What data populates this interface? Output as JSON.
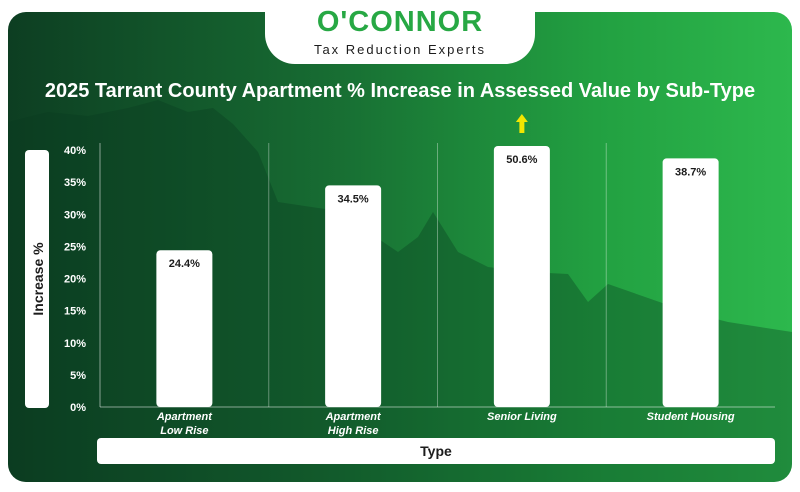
{
  "logo": {
    "brand": "O'CONNOR",
    "tagline": "Tax Reduction Experts"
  },
  "colors": {
    "brand_green": "#27a844",
    "background_dark": "#0d3e22",
    "background_light": "#2db84d",
    "arrow": "#f2e600"
  },
  "chart_data": {
    "type": "bar",
    "title": "2025 Tarrant County Apartment % Increase in Assessed Value by Sub-Type",
    "xlabel": "Type",
    "ylabel": "Increase %",
    "categories": [
      [
        "Apartment",
        "Low Rise"
      ],
      [
        "Apartment",
        "High Rise"
      ],
      [
        "Senior Living"
      ],
      [
        "Student Housing"
      ]
    ],
    "values": [
      24.4,
      34.5,
      50.6,
      38.7
    ],
    "value_labels": [
      "24.4%",
      "34.5%",
      "50.6%",
      "38.7%"
    ],
    "ylim": [
      0,
      40
    ],
    "yticks": [
      0,
      5,
      10,
      15,
      20,
      25,
      30,
      35,
      40
    ],
    "ytick_labels": [
      "0%",
      "5%",
      "10%",
      "15%",
      "20%",
      "25%",
      "30%",
      "35%",
      "40%"
    ],
    "overflow_marker": {
      "category_index": 2,
      "icon": "up-arrow-icon"
    },
    "grid": "vertical separators between categories",
    "bar_color": "#ffffff"
  }
}
